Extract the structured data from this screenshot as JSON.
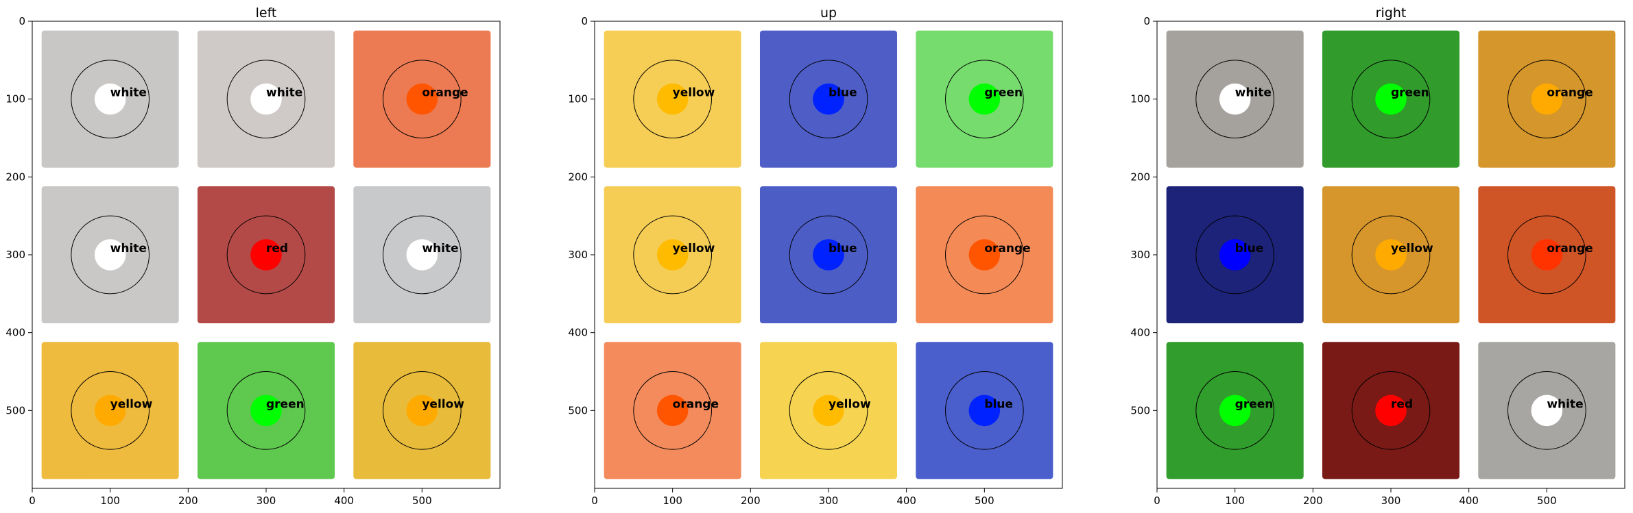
{
  "chart_data": [
    {
      "type": "heatmap",
      "title": "left",
      "xlim": [
        0,
        600
      ],
      "ylim": [
        600,
        0
      ],
      "xticks": [
        0,
        100,
        200,
        300,
        400,
        500
      ],
      "yticks": [
        0,
        100,
        200,
        300,
        400,
        500
      ],
      "grid": false,
      "cells": [
        {
          "label": "white",
          "x": 100,
          "y": 100,
          "bg": "#c9c7c5",
          "dot": "#ffffff"
        },
        {
          "label": "white",
          "x": 300,
          "y": 100,
          "bg": "#cfcac7",
          "dot": "#ffffff"
        },
        {
          "label": "orange",
          "x": 500,
          "y": 100,
          "bg": "#ec7a52",
          "dot": "#ff5500"
        },
        {
          "label": "white",
          "x": 100,
          "y": 300,
          "bg": "#cac8c6",
          "dot": "#ffffff"
        },
        {
          "label": "red",
          "x": 300,
          "y": 300,
          "bg": "#b34a47",
          "dot": "#ff0000"
        },
        {
          "label": "white",
          "x": 500,
          "y": 300,
          "bg": "#c8c9cb",
          "dot": "#ffffff"
        },
        {
          "label": "yellow",
          "x": 100,
          "y": 500,
          "bg": "#efbb3e",
          "dot": "#ffaa00"
        },
        {
          "label": "green",
          "x": 300,
          "y": 500,
          "bg": "#5fc84f",
          "dot": "#00ff00"
        },
        {
          "label": "yellow",
          "x": 500,
          "y": 500,
          "bg": "#e8bb3a",
          "dot": "#ffaa00"
        }
      ]
    },
    {
      "type": "heatmap",
      "title": "up",
      "xlim": [
        0,
        600
      ],
      "ylim": [
        600,
        0
      ],
      "xticks": [
        0,
        100,
        200,
        300,
        400,
        500
      ],
      "yticks": [
        0,
        100,
        200,
        300,
        400,
        500
      ],
      "grid": false,
      "cells": [
        {
          "label": "yellow",
          "x": 100,
          "y": 100,
          "bg": "#f6cd55",
          "dot": "#ffbb00"
        },
        {
          "label": "blue",
          "x": 300,
          "y": 100,
          "bg": "#4e5ec6",
          "dot": "#0022ff"
        },
        {
          "label": "green",
          "x": 500,
          "y": 100,
          "bg": "#77dc6e",
          "dot": "#00ff00"
        },
        {
          "label": "yellow",
          "x": 100,
          "y": 300,
          "bg": "#f5cd55",
          "dot": "#ffbb00"
        },
        {
          "label": "blue",
          "x": 300,
          "y": 300,
          "bg": "#4d5dc6",
          "dot": "#0022ff"
        },
        {
          "label": "orange",
          "x": 500,
          "y": 300,
          "bg": "#f48a56",
          "dot": "#ff5500"
        },
        {
          "label": "orange",
          "x": 100,
          "y": 500,
          "bg": "#f48b5c",
          "dot": "#ff5500"
        },
        {
          "label": "yellow",
          "x": 300,
          "y": 500,
          "bg": "#f6d452",
          "dot": "#ffbb00"
        },
        {
          "label": "blue",
          "x": 500,
          "y": 500,
          "bg": "#4a5ecc",
          "dot": "#0022ff"
        }
      ]
    },
    {
      "type": "heatmap",
      "title": "right",
      "xlim": [
        0,
        600
      ],
      "ylim": [
        600,
        0
      ],
      "xticks": [
        0,
        100,
        200,
        300,
        400,
        500
      ],
      "yticks": [
        0,
        100,
        200,
        300,
        400,
        500
      ],
      "grid": false,
      "cells": [
        {
          "label": "white",
          "x": 100,
          "y": 100,
          "bg": "#a5a19d",
          "dot": "#ffffff"
        },
        {
          "label": "green",
          "x": 300,
          "y": 100,
          "bg": "#319b2c",
          "dot": "#00ff00"
        },
        {
          "label": "orange",
          "x": 500,
          "y": 100,
          "bg": "#d5962b",
          "dot": "#ffaa00"
        },
        {
          "label": "blue",
          "x": 100,
          "y": 300,
          "bg": "#1c2379",
          "dot": "#0000ff"
        },
        {
          "label": "yellow",
          "x": 300,
          "y": 300,
          "bg": "#d7962b",
          "dot": "#ffaa00"
        },
        {
          "label": "orange",
          "x": 500,
          "y": 300,
          "bg": "#cf5426",
          "dot": "#ff3300"
        },
        {
          "label": "green",
          "x": 100,
          "y": 500,
          "bg": "#319d2c",
          "dot": "#00ff00"
        },
        {
          "label": "red",
          "x": 300,
          "y": 500,
          "bg": "#791a16",
          "dot": "#ff0000"
        },
        {
          "label": "white",
          "x": 500,
          "y": 500,
          "bg": "#a8a6a2",
          "dot": "#ffffff"
        }
      ]
    }
  ]
}
